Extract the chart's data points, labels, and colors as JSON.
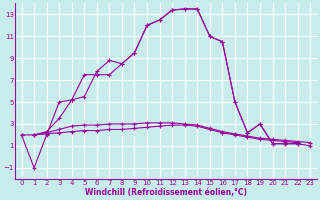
{
  "xlabel": "Windchill (Refroidissement éolien,°C)",
  "background_color": "#c8ecec",
  "grid_color": "#ffffff",
  "line_color": "#990099",
  "xlim": [
    -0.5,
    23.5
  ],
  "ylim": [
    -2,
    14
  ],
  "xticks": [
    0,
    1,
    2,
    3,
    4,
    5,
    6,
    7,
    8,
    9,
    10,
    11,
    12,
    13,
    14,
    15,
    16,
    17,
    18,
    19,
    20,
    21,
    22,
    23
  ],
  "yticks": [
    -1,
    1,
    3,
    5,
    7,
    9,
    11,
    13
  ],
  "s1_x": [
    0,
    1,
    2,
    3,
    4,
    5,
    6,
    7,
    8,
    9,
    10,
    11,
    12,
    13,
    14,
    15,
    16,
    17,
    18,
    19,
    20,
    21,
    22
  ],
  "s1_y": [
    2,
    -1,
    2,
    5,
    5.2,
    7.5,
    7.5,
    7.5,
    8.5,
    9.5,
    12,
    12.5,
    13.4,
    13.5,
    13.5,
    11,
    10.5,
    5,
    2.2,
    3,
    1.2,
    1.2,
    1.2
  ],
  "s2_x": [
    1,
    2,
    3,
    4,
    5,
    6,
    7,
    8,
    9,
    10,
    11,
    12,
    13,
    14,
    15,
    16,
    17,
    18,
    19,
    20,
    21,
    22,
    23
  ],
  "s2_y": [
    2,
    2.3,
    3.5,
    5.2,
    5.5,
    7.8,
    8.8,
    8.5,
    9.5,
    12,
    12.5,
    13.4,
    13.5,
    13.5,
    11,
    10.5,
    5,
    2.2,
    3,
    1.2,
    1.2,
    1.2,
    1.0
  ],
  "s3_x": [
    0,
    1,
    2,
    3,
    4,
    5,
    6,
    7,
    8,
    9,
    10,
    11,
    12,
    13,
    14,
    15,
    16,
    17,
    18,
    19,
    20,
    21,
    22
  ],
  "s3_y": [
    2,
    2,
    2.1,
    2.2,
    2.3,
    2.4,
    2.4,
    2.5,
    2.5,
    2.6,
    2.7,
    2.8,
    2.9,
    2.9,
    2.8,
    2.5,
    2.2,
    2.0,
    1.8,
    1.6,
    1.5,
    1.4,
    1.3
  ],
  "s4_x": [
    1,
    2,
    3,
    4,
    5,
    6,
    7,
    8,
    9,
    10,
    11,
    12,
    13,
    14,
    15,
    16,
    17,
    18,
    19,
    20,
    21,
    22,
    23
  ],
  "s4_y": [
    2,
    2.2,
    2.5,
    2.8,
    2.9,
    2.9,
    3.0,
    3.0,
    3.0,
    3.1,
    3.1,
    3.1,
    3.0,
    2.9,
    2.6,
    2.3,
    2.1,
    1.9,
    1.7,
    1.6,
    1.5,
    1.4,
    1.3
  ],
  "tick_fontsize": 5,
  "xlabel_fontsize": 5.5
}
